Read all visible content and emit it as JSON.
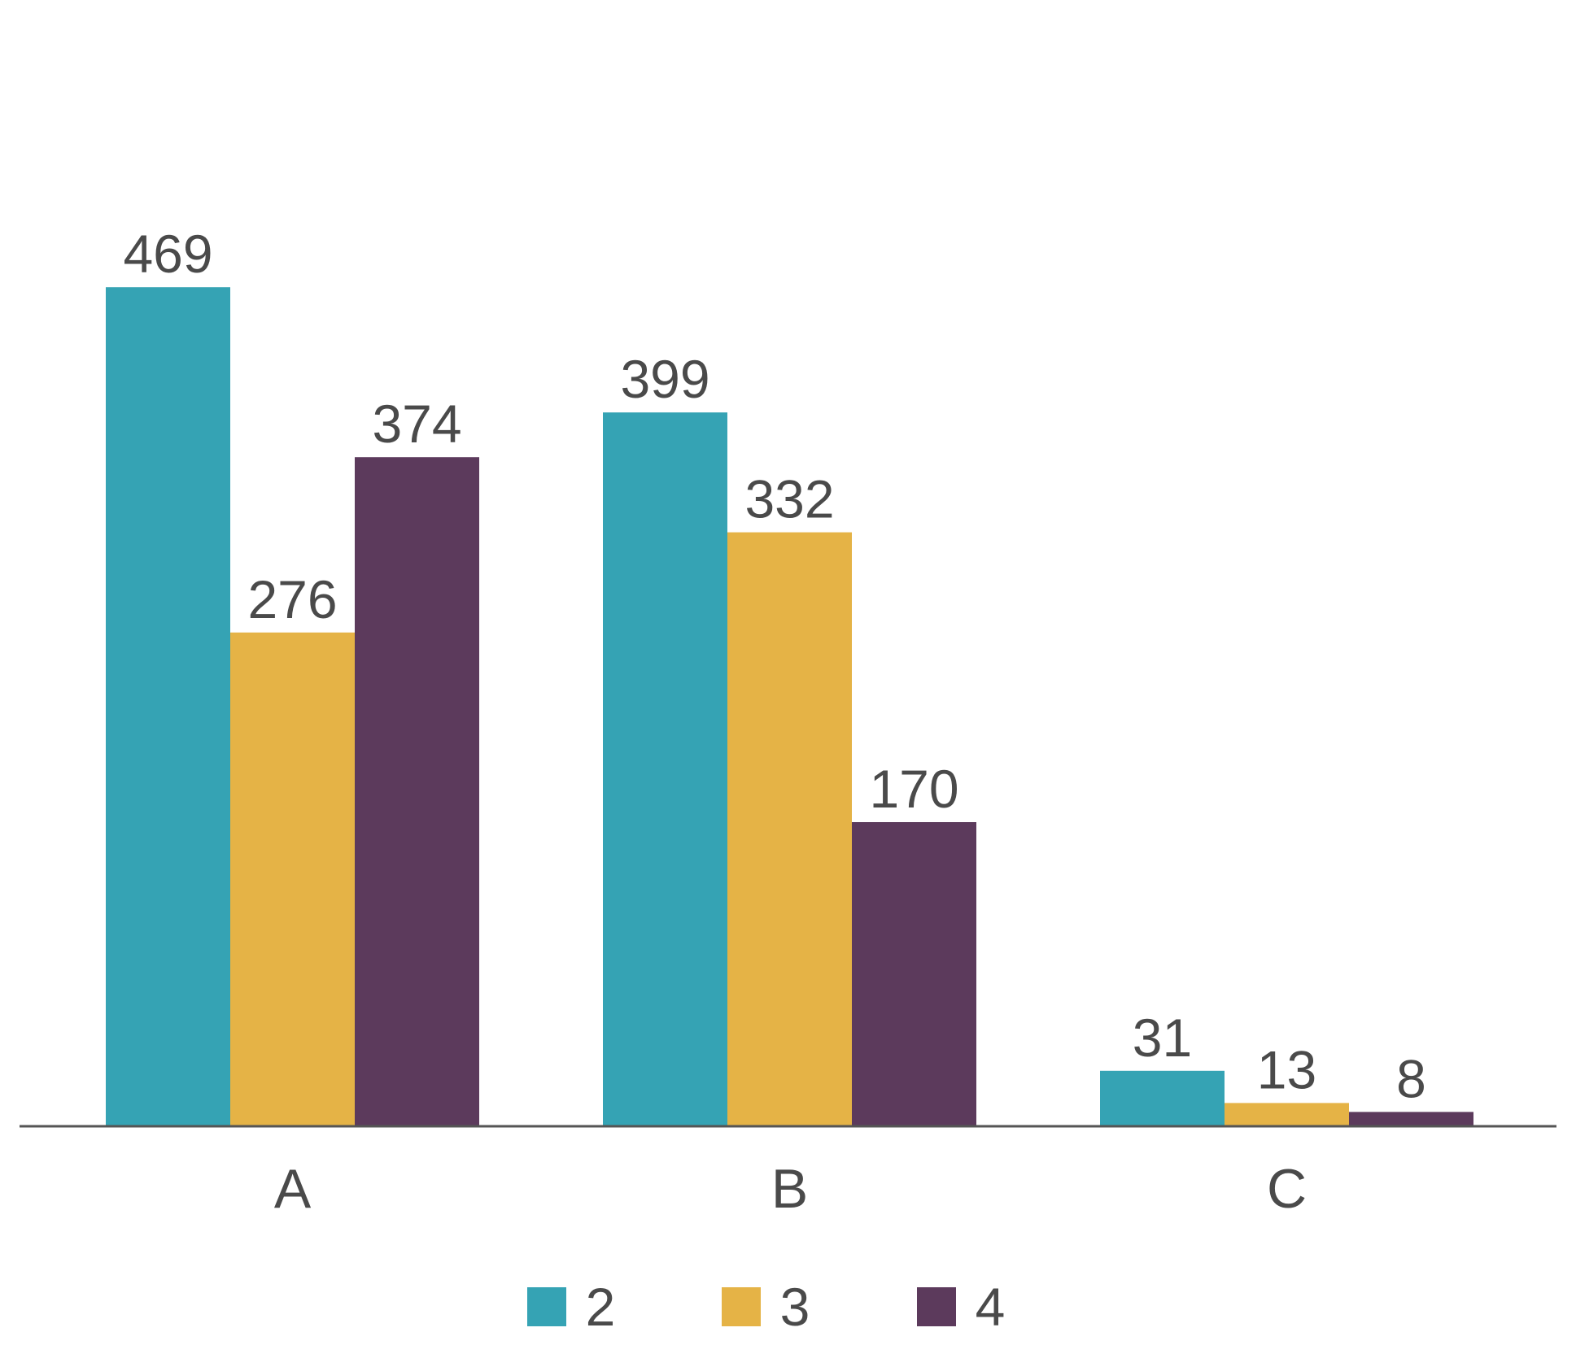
{
  "chart_data": {
    "type": "bar",
    "categories": [
      "A",
      "B",
      "C"
    ],
    "series": [
      {
        "name": "2",
        "values": [
          469,
          399,
          31
        ],
        "color": "#35A3B4"
      },
      {
        "name": "3",
        "values": [
          276,
          332,
          13
        ],
        "color": "#E5B346"
      },
      {
        "name": "4",
        "values": [
          374,
          170,
          8
        ],
        "color": "#5C3A5C"
      }
    ],
    "data_labels": true,
    "legend_position": "bottom-center",
    "grid": false,
    "ylim": [
      0,
      500
    ],
    "axis_color": "#555555",
    "text_color": "#4a4a4a"
  }
}
